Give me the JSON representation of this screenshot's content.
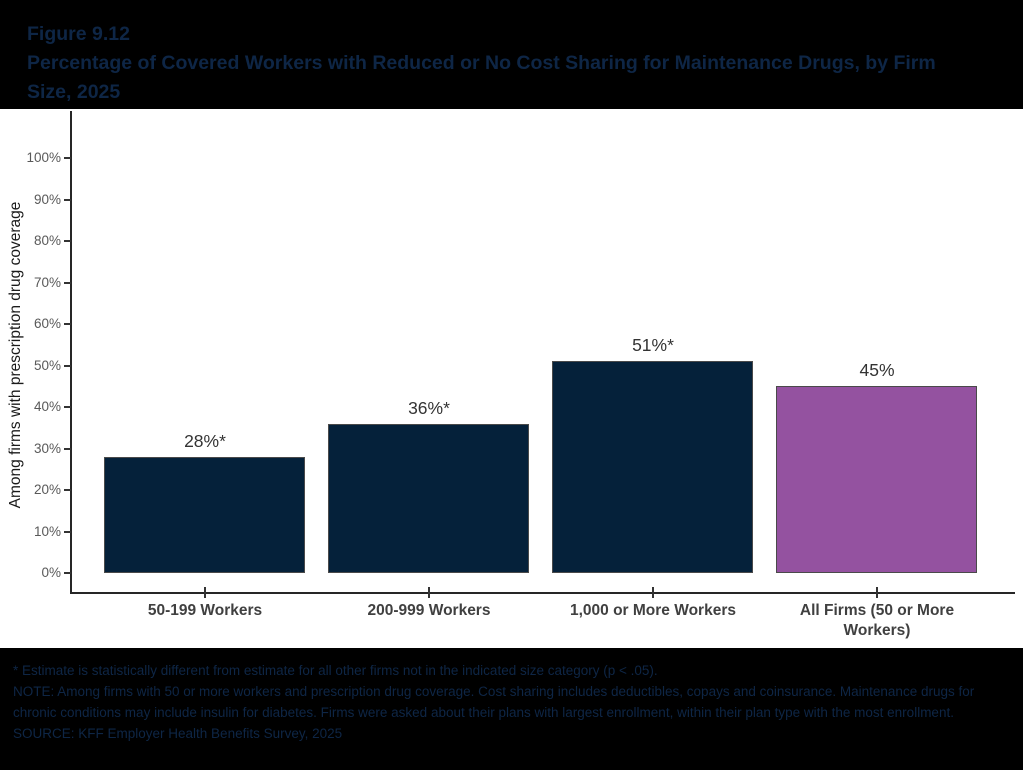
{
  "header": {
    "figure_label": "Figure 9.12",
    "title": "Percentage of Covered Workers with Reduced or No Cost Sharing for Maintenance Drugs, by Firm Size, 2025"
  },
  "chart_data": {
    "type": "bar",
    "title": "Percentage of Covered Workers with Reduced or No Cost Sharing for Maintenance Drugs, by Firm Size, 2025",
    "categories": [
      "50-199 Workers",
      "200-999 Workers",
      "1,000 or More Workers",
      "All Firms (50 or More Workers)"
    ],
    "values": [
      28,
      36,
      51,
      45
    ],
    "bar_labels": [
      "28%*",
      "36%*",
      "51%*",
      "45%"
    ],
    "bar_colors": [
      "#05213a",
      "#05213a",
      "#05213a",
      "#9452a0"
    ],
    "xlabel": "",
    "ylabel": "Among firms with prescription drug coverage",
    "ylim": [
      0,
      100
    ],
    "yticks": [
      0,
      10,
      20,
      30,
      40,
      50,
      60,
      70,
      80,
      90,
      100
    ],
    "ytick_suffix": "%",
    "grid": false,
    "legend_position": "none"
  },
  "footnotes": {
    "significance": "* Estimate is statistically different from estimate for all other firms not in the indicated size category (p < .05).",
    "note": "NOTE: Among firms with 50 or more workers and prescription drug coverage. Cost sharing includes deductibles, copays and coinsurance. Maintenance drugs for chronic conditions may include insulin for diabetes. Firms were asked about their plans with largest enrollment, within their plan type with the most enrollment.",
    "source": "SOURCE: KFF Employer Health Benefits Survey, 2025"
  },
  "colors": {
    "band_background": "#000000",
    "band_text": "#0e2646",
    "axis_line": "#262626",
    "tick_label": "#595959",
    "category_label": "#404040",
    "value_label": "#333333"
  }
}
